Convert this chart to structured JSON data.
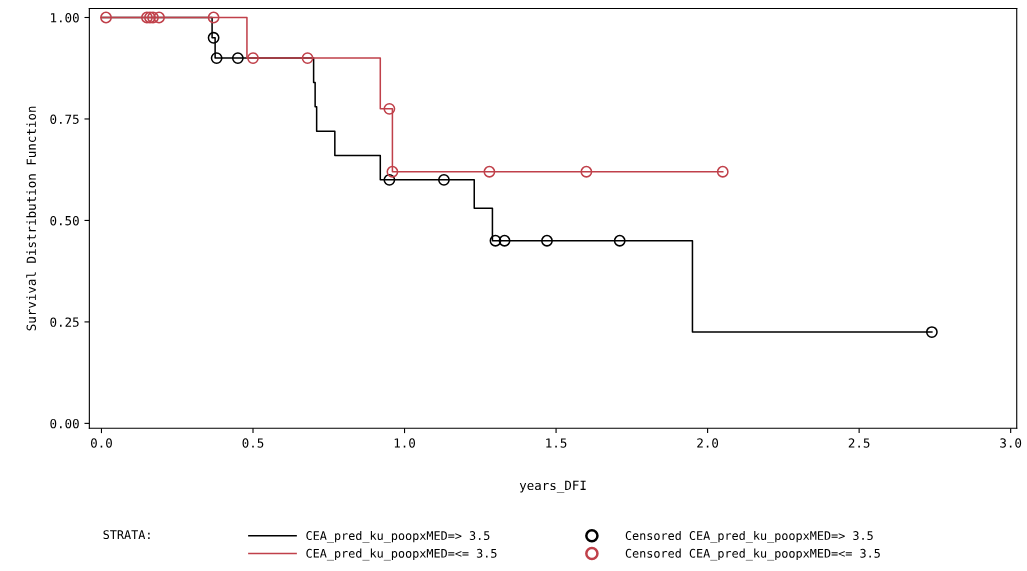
{
  "chart_data": {
    "type": "step",
    "xlabel": "years_DFI",
    "ylabel": "Survival Distribution Function",
    "legend_title": "STRATA:",
    "xlim": [
      -0.04,
      3.02
    ],
    "ylim": [
      -0.012,
      1.022
    ],
    "xticks": [
      {
        "value": 0,
        "label": "0.0"
      },
      {
        "value": 0.5,
        "label": "0.5"
      },
      {
        "value": 1,
        "label": "1.0"
      },
      {
        "value": 1.5,
        "label": "1.5"
      },
      {
        "value": 2,
        "label": "2.0"
      },
      {
        "value": 2.5,
        "label": "2.5"
      },
      {
        "value": 3,
        "label": "3.0"
      }
    ],
    "yticks": [
      {
        "value": 0,
        "label": "0.00"
      },
      {
        "value": 0.25,
        "label": "0.25"
      },
      {
        "value": 0.5,
        "label": "0.50"
      },
      {
        "value": 0.75,
        "label": "0.75"
      },
      {
        "value": 1,
        "label": "1.00"
      }
    ],
    "grid": false,
    "legend": "bottom",
    "marker": "none",
    "line_style": "solid",
    "series": [
      {
        "name": "CEA_pred_ku_poopxMED=> 3.5",
        "color": "#000000",
        "x": [
          0,
          0.365,
          0.375,
          0.7,
          0.705,
          0.71,
          0.77,
          0.92,
          1.23,
          1.29,
          1.95,
          2.74
        ],
        "values": [
          1,
          0.95,
          0.9,
          0.84,
          0.78,
          0.72,
          0.66,
          0.6,
          0.53,
          0.45,
          0.225,
          0.225
        ]
      },
      {
        "name": "CEA_pred_ku_poopxMED=<= 3.5",
        "color": "#c0404a",
        "x": [
          0,
          0.48,
          0.92,
          0.96,
          2.05
        ],
        "values": [
          1,
          0.9,
          0.775,
          0.62,
          0.62
        ]
      },
      {
        "name": "Censored CEA_pred_ku_poopxMED=> 3.5",
        "type": "scatter",
        "marker": "circle",
        "color": "#000000",
        "x": [
          0.37,
          0.38,
          0.45,
          0.95,
          1.13,
          1.3,
          1.33,
          1.47,
          1.71,
          2.74
        ],
        "values": [
          0.95,
          0.9,
          0.9,
          0.6,
          0.6,
          0.45,
          0.45,
          0.45,
          0.45,
          0.225
        ]
      },
      {
        "name": "Censored CEA_pred_ku_poopxMED=<= 3.5",
        "type": "scatter",
        "marker": "circle",
        "color": "#c0404a",
        "x": [
          0.015,
          0.15,
          0.16,
          0.17,
          0.19,
          0.37,
          0.5,
          0.68,
          0.95,
          0.96,
          1.28,
          1.6,
          2.05
        ],
        "values": [
          1,
          1,
          1,
          1,
          1,
          1,
          0.9,
          0.9,
          0.775,
          0.62,
          0.62,
          0.62,
          0.62
        ]
      }
    ]
  }
}
